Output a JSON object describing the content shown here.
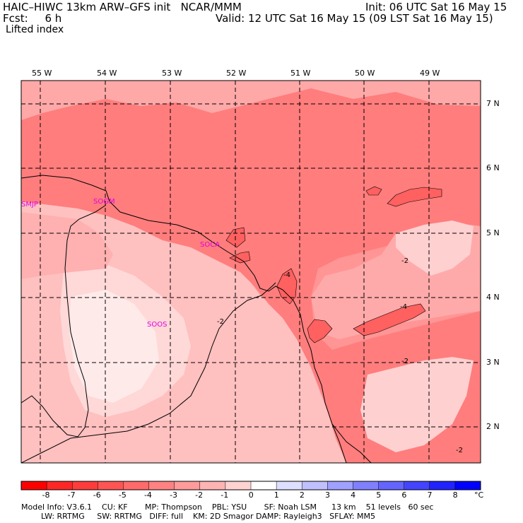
{
  "header": {
    "model_line": "HAIC–HIWC 13km ARW–GFS init   NCAR/MMM",
    "forecast_line": "Fcst:     6 h",
    "field_line": "Lifted index",
    "init_line": "Init: 06 UTC Sat 16 May 15",
    "valid_line": "Valid: 12 UTC Sat 16 May 15 (09 LST Sat 16 May 15)"
  },
  "map": {
    "lon_labels": [
      "55 W",
      "54 W",
      "53 W",
      "52 W",
      "51 W",
      "50 W",
      "49 W"
    ],
    "lat_labels": [
      "7 N",
      "6 N",
      "5 N",
      "4 N",
      "3 N",
      "2 N"
    ],
    "stations": [
      "SMJP",
      "SOGM",
      "SOCA",
      "SOOS"
    ],
    "contour_labels": [
      "-2",
      "-2",
      "-4",
      "-4",
      "-2",
      "-2"
    ]
  },
  "colorbar": {
    "values": [
      "-8",
      "-7",
      "-6",
      "-5",
      "-4",
      "-3",
      "-2",
      "-1",
      "0",
      "1",
      "2",
      "3",
      "4",
      "5",
      "6",
      "7",
      "8"
    ],
    "unit": "°C",
    "colors": [
      "#ff0000",
      "#ff2626",
      "#ff3c3c",
      "#ff5454",
      "#ff6a6a",
      "#ff8282",
      "#ff9b9b",
      "#ffb4b4",
      "#ffd2d2",
      "#ffffff",
      "#dedeff",
      "#c0c0ff",
      "#a0a0ff",
      "#8080ff",
      "#6464ff",
      "#4444ff",
      "#2222ff",
      "#0000ff"
    ]
  },
  "footer": {
    "line1": "Model Info: V3.6.1    CU: KF       MP: Thompson    PBL: YSU       SF: Noah LSM      13 km    51 levels   60 sec",
    "line2": "        LW: RRTMG     SW: RRTMG   DIFF: full    KM: 2D Smagor DAMP: Rayleigh3   SFLAY: MM5"
  }
}
